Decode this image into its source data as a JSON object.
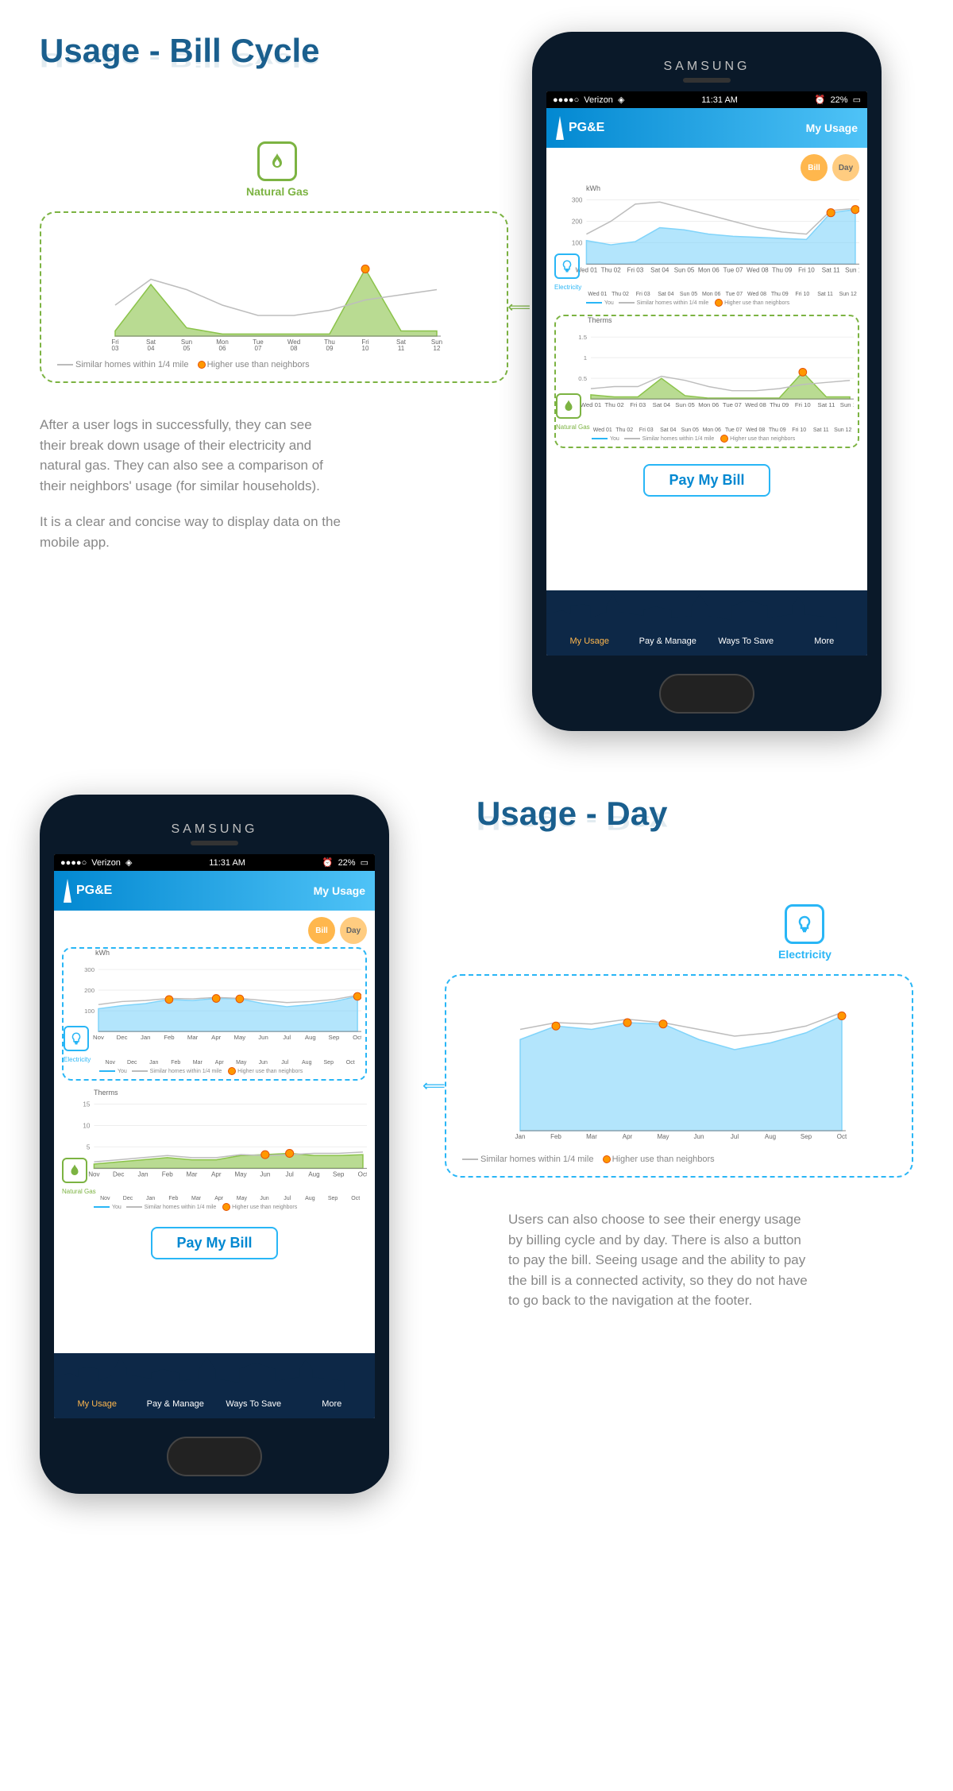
{
  "section1": {
    "heading": "Usage - Bill Cycle",
    "callout": {
      "label": "Natural Gas",
      "icon_color": "#7cb342",
      "chart": {
        "type": "area",
        "xlabels": [
          "Fri\n03",
          "Sat\n04",
          "Sun\n05",
          "Mon\n06",
          "Tue\n07",
          "Wed\n08",
          "Thu\n09",
          "Fri\n10",
          "Sat\n11",
          "Sun\n12"
        ],
        "you_values": [
          0.05,
          0.5,
          0.08,
          0.02,
          0.02,
          0.02,
          0.02,
          0.65,
          0.05,
          0.05
        ],
        "similar_values": [
          0.3,
          0.55,
          0.45,
          0.3,
          0.2,
          0.2,
          0.25,
          0.35,
          0.4,
          0.45
        ],
        "you_color": "#8bc34a",
        "similar_color": "#bdbdbd",
        "highlight_idx": [
          7
        ],
        "ylim": [
          0,
          1
        ]
      },
      "legend_similar": "Similar homes within 1/4 mile",
      "legend_higher": "Higher use than neighbors"
    },
    "desc_p1": "After a user logs in successfully, they can see their break down usage of their electricity and natural gas. They can also see a comparison of their neighbors' usage (for similar households).",
    "desc_p2": "It is a clear and concise way to display data on the mobile app."
  },
  "section2": {
    "heading": "Usage - Day",
    "callout": {
      "label": "Electricity",
      "icon_color": "#29b6f6",
      "chart": {
        "type": "area",
        "xlabels": [
          "Jan",
          "Feb",
          "Mar",
          "Apr",
          "May",
          "Jun",
          "Jul",
          "Aug",
          "Sep",
          "Oct"
        ],
        "you_values": [
          135,
          155,
          150,
          160,
          158,
          135,
          120,
          130,
          145,
          170
        ],
        "similar_values": [
          150,
          160,
          158,
          165,
          160,
          150,
          140,
          145,
          155,
          175
        ],
        "you_color": "#81d4fa",
        "similar_color": "#bdbdbd",
        "highlight_idx": [
          1,
          3,
          4,
          9
        ],
        "ylim": [
          0,
          200
        ]
      },
      "legend_similar": "Similar homes within 1/4 mile",
      "legend_higher": "Higher use than neighbors"
    },
    "desc_p1": "Users can also choose to see their energy usage by billing cycle and by day. There is also a button to pay the bill. Seeing usage and the ability to pay the bill is a connected activity, so they do not have to go back to the navigation at the footer."
  },
  "phone": {
    "brand": "SAMSUNG",
    "status": {
      "carrier": "Verizon",
      "time": "11:31 AM",
      "battery": "22%"
    },
    "logo": "PG&E",
    "header_title": "My Usage",
    "toggle_bill": "Bill",
    "toggle_day": "Day",
    "elec_label": "Electricity",
    "gas_label": "Natural Gas",
    "pay_label": "Pay My Bill",
    "nav": {
      "usage": "My Usage",
      "pay": "Pay & Manage",
      "save": "Ways To Save",
      "more": "More"
    },
    "legend": {
      "you": "You",
      "similar": "Similar homes within 1/4 mile",
      "higher": "Higher use than neighbors"
    },
    "screen1": {
      "elec_chart": {
        "ylabel": "kWh",
        "ylim": [
          0,
          300
        ],
        "yticks": [
          100,
          200,
          300
        ],
        "xlabels": [
          "Wed 01",
          "Thu 02",
          "Fri 03",
          "Sat 04",
          "Sun 05",
          "Mon 06",
          "Tue 07",
          "Wed 08",
          "Thu 09",
          "Fri 10",
          "Sat 11",
          "Sun 12"
        ],
        "you_values": [
          110,
          90,
          105,
          170,
          160,
          140,
          130,
          125,
          120,
          115,
          240,
          255
        ],
        "similar_values": [
          140,
          200,
          280,
          290,
          260,
          230,
          200,
          170,
          150,
          140,
          250,
          260
        ],
        "you_color": "#81d4fa",
        "similar_color": "#bdbdbd",
        "highlight_idx": [
          10,
          11
        ]
      },
      "gas_chart": {
        "ylabel": "Therms",
        "ylim": [
          0,
          1.5
        ],
        "yticks": [
          0.5,
          1,
          1.5
        ],
        "xlabels": [
          "Wed 01",
          "Thu 02",
          "Fri 03",
          "Sat 04",
          "Sun 05",
          "Mon 06",
          "Tue 07",
          "Wed 08",
          "Thu 09",
          "Fri 10",
          "Sat 11",
          "Sun 12"
        ],
        "you_values": [
          0.1,
          0.05,
          0.05,
          0.5,
          0.08,
          0.02,
          0.02,
          0.02,
          0.02,
          0.65,
          0.05,
          0.05
        ],
        "similar_values": [
          0.25,
          0.3,
          0.3,
          0.55,
          0.45,
          0.3,
          0.2,
          0.2,
          0.25,
          0.35,
          0.4,
          0.45
        ],
        "you_color": "#8bc34a",
        "similar_color": "#bdbdbd",
        "highlight_idx": [
          9
        ]
      }
    },
    "screen2": {
      "elec_chart": {
        "ylabel": "kWh",
        "ylim": [
          0,
          300
        ],
        "yticks": [
          100,
          200,
          300
        ],
        "xlabels": [
          "Nov",
          "Dec",
          "Jan",
          "Feb",
          "Mar",
          "Apr",
          "May",
          "Jun",
          "Jul",
          "Aug",
          "Sep",
          "Oct"
        ],
        "you_values": [
          110,
          125,
          135,
          155,
          150,
          160,
          158,
          135,
          120,
          130,
          145,
          170
        ],
        "similar_values": [
          130,
          145,
          150,
          160,
          158,
          165,
          160,
          150,
          140,
          145,
          155,
          175
        ],
        "you_color": "#81d4fa",
        "similar_color": "#bdbdbd",
        "highlight_idx": [
          3,
          5,
          6,
          11
        ]
      },
      "gas_chart": {
        "ylabel": "Therms",
        "ylim": [
          0,
          15
        ],
        "yticks": [
          5,
          10,
          15
        ],
        "xlabels": [
          "Nov",
          "Dec",
          "Jan",
          "Feb",
          "Mar",
          "Apr",
          "May",
          "Jun",
          "Jul",
          "Aug",
          "Sep",
          "Oct"
        ],
        "you_values": [
          1,
          1.5,
          2,
          2.5,
          2,
          2,
          3,
          3.2,
          3.5,
          3,
          3,
          3.2
        ],
        "similar_values": [
          1.5,
          2,
          2.5,
          3,
          2.5,
          2.5,
          3.2,
          3,
          3.2,
          3.5,
          3.5,
          3.8
        ],
        "you_color": "#8bc34a",
        "similar_color": "#bdbdbd",
        "highlight_idx": [
          7,
          8
        ]
      }
    }
  },
  "colors": {
    "heading": "#1a5f8e",
    "green": "#7cb342",
    "blue": "#29b6f6",
    "orange": "#ff9800",
    "navy": "#0d2847"
  }
}
